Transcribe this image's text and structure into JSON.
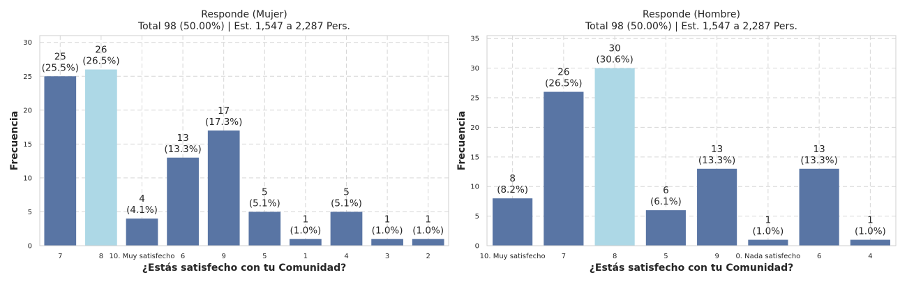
{
  "chart_data": [
    {
      "type": "bar",
      "title": "Responde (Mujer)",
      "subtitle": "Total 98 (50.00%) | Est. 1,547 a 2,287 Pers.",
      "xlabel": "¿Estás satisfecho con tu Comunidad?",
      "ylabel": "Frecuencia",
      "ylim": [
        0,
        31
      ],
      "yticks": [
        0,
        5,
        10,
        15,
        20,
        25,
        30
      ],
      "grid": true,
      "categories": [
        "7",
        "8",
        "10. Muy satisfecho",
        "6",
        "9",
        "5",
        "1",
        "4",
        "3",
        "2"
      ],
      "values": [
        25,
        26,
        4,
        13,
        17,
        5,
        1,
        5,
        1,
        1
      ],
      "percent_labels": [
        "(25.5%)",
        "(26.5%)",
        "(4.1%)",
        "(13.3%)",
        "(17.3%)",
        "(5.1%)",
        "(1.0%)",
        "(5.1%)",
        "(1.0%)",
        "(1.0%)"
      ],
      "highlight_index": 1,
      "colors": {
        "bar": "#5975a4",
        "highlight": "#add8e6"
      }
    },
    {
      "type": "bar",
      "title": "Responde (Hombre)",
      "subtitle": "Total 98 (50.00%) | Est. 1,547 a 2,287 Pers.",
      "xlabel": "¿Estás satisfecho con tu Comunidad?",
      "ylabel": "Frecuencia",
      "ylim": [
        0,
        35.5
      ],
      "yticks": [
        0,
        5,
        10,
        15,
        20,
        25,
        30,
        35
      ],
      "grid": true,
      "categories": [
        "10. Muy satisfecho",
        "7",
        "8",
        "5",
        "9",
        "0. Nada satisfecho",
        "6",
        "4"
      ],
      "values": [
        8,
        26,
        30,
        6,
        13,
        1,
        13,
        1
      ],
      "percent_labels": [
        "(8.2%)",
        "(26.5%)",
        "(30.6%)",
        "(6.1%)",
        "(13.3%)",
        "(1.0%)",
        "(13.3%)",
        "(1.0%)"
      ],
      "highlight_index": 2,
      "colors": {
        "bar": "#5975a4",
        "highlight": "#add8e6"
      }
    }
  ]
}
